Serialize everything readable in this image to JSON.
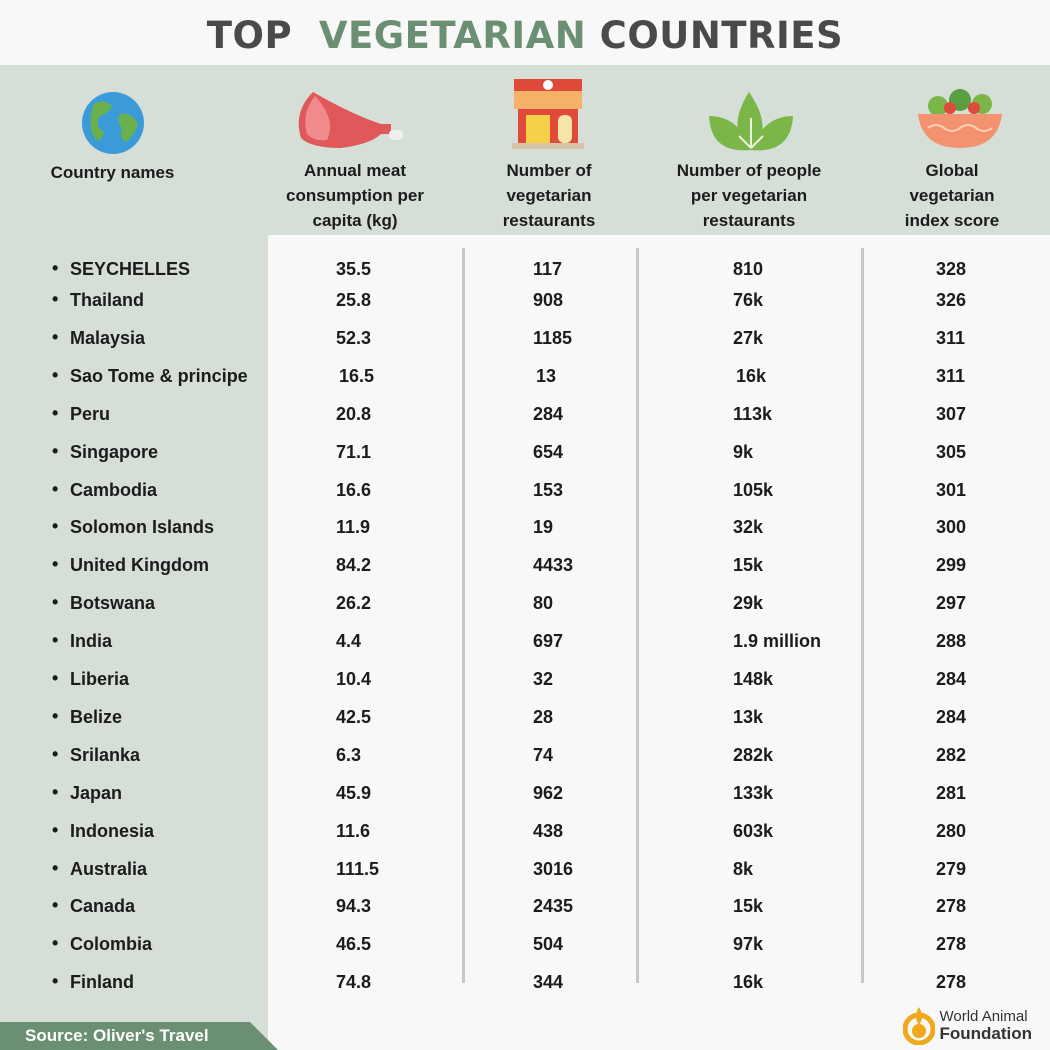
{
  "title": {
    "part1": "TOP",
    "part2": "VEGETARIAN",
    "part3": "COUNTRIES"
  },
  "colors": {
    "accent": "#6b8f72",
    "band": "#d5ded7",
    "title_dark": "#4a4a4a",
    "logo": "#f0a81c"
  },
  "chart_data": {
    "type": "table",
    "columns": [
      "Country names",
      "Annual meat consumption per capita (kg)",
      "Number of vegetarian restaurants",
      "Number of people per vegetarian restaurants",
      "Global vegetarian index score"
    ],
    "column_icons": [
      "globe-icon",
      "meat-icon",
      "restaurant-icon",
      "leaf-icon",
      "salad-bowl-icon"
    ],
    "rows": [
      [
        "SEYCHELLES",
        "35.5",
        "117",
        "810",
        "328"
      ],
      [
        "Thailand",
        "25.8",
        "908",
        "76k",
        "326"
      ],
      [
        "Malaysia",
        "52.3",
        "1185",
        "27k",
        "311"
      ],
      [
        "Sao Tome & principe",
        "16.5",
        "13",
        "16k",
        "311"
      ],
      [
        "Peru",
        "20.8",
        "284",
        "113k",
        "307"
      ],
      [
        "Singapore",
        "71.1",
        "654",
        "9k",
        "305"
      ],
      [
        "Cambodia",
        "16.6",
        "153",
        "105k",
        "301"
      ],
      [
        "Solomon Islands",
        "11.9",
        "19",
        "32k",
        "300"
      ],
      [
        "United Kingdom",
        "84.2",
        "4433",
        "15k",
        "299"
      ],
      [
        "Botswana",
        "26.2",
        "80",
        "29k",
        "297"
      ],
      [
        "India",
        "4.4",
        "697",
        "1.9 million",
        "288"
      ],
      [
        "Liberia",
        "10.4",
        "32",
        "148k",
        "284"
      ],
      [
        "Belize",
        "42.5",
        "28",
        "13k",
        "284"
      ],
      [
        "Srilanka",
        "6.3",
        "74",
        "282k",
        "282"
      ],
      [
        "Japan",
        "45.9",
        "962",
        "133k",
        "281"
      ],
      [
        "Indonesia",
        "11.6",
        "438",
        "603k",
        "280"
      ],
      [
        "Australia",
        "111.5",
        "3016",
        "8k",
        "279"
      ],
      [
        "Canada",
        "94.3",
        "2435",
        "15k",
        "278"
      ],
      [
        "Colombia",
        "46.5",
        "504",
        "97k",
        "278"
      ],
      [
        "Finland",
        "74.8",
        "344",
        "16k",
        "278"
      ]
    ]
  },
  "source": "Source: Oliver's Travel",
  "logo": {
    "line1": "World Animal",
    "line2": "Foundation"
  }
}
